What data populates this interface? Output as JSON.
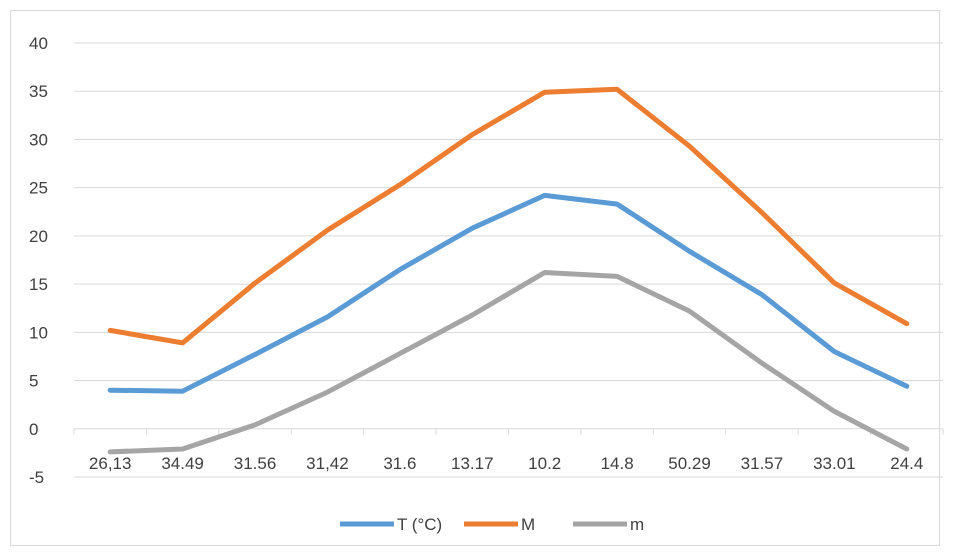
{
  "chart_data": {
    "type": "line",
    "categories": [
      "26,13",
      "34.49",
      "31.56",
      "31,42",
      "31.6",
      "13.17",
      "10.2",
      "14.8",
      "50.29",
      "31.57",
      "33.01",
      "24.4"
    ],
    "series": [
      {
        "name": "T (°C)",
        "color": "#5b9bd5",
        "values": [
          4.0,
          3.9,
          7.7,
          11.6,
          16.5,
          20.8,
          24.2,
          23.3,
          18.4,
          13.9,
          8.0,
          4.4
        ]
      },
      {
        "name": "M",
        "color": "#ed7d31",
        "values": [
          10.2,
          8.9,
          15.1,
          20.6,
          25.3,
          30.5,
          34.9,
          35.2,
          29.3,
          22.4,
          15.1,
          10.9
        ]
      },
      {
        "name": "m",
        "color": "#a5a5a5",
        "values": [
          -2.4,
          -2.1,
          0.4,
          3.8,
          7.8,
          11.8,
          16.2,
          15.8,
          12.2,
          6.8,
          1.8,
          -2.1
        ]
      }
    ],
    "yticks": [
      -5,
      0,
      5,
      10,
      15,
      20,
      25,
      30,
      35,
      40
    ],
    "ylim": [
      -5,
      40
    ],
    "grid": true,
    "legend": "bottom"
  }
}
